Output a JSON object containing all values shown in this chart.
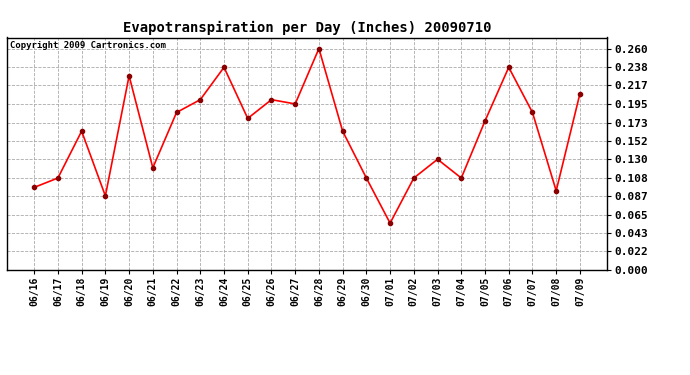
{
  "title": "Evapotranspiration per Day (Inches) 20090710",
  "copyright": "Copyright 2009 Cartronics.com",
  "labels": [
    "06/16",
    "06/17",
    "06/18",
    "06/19",
    "06/20",
    "06/21",
    "06/22",
    "06/23",
    "06/24",
    "06/25",
    "06/26",
    "06/27",
    "06/28",
    "06/29",
    "06/30",
    "07/01",
    "07/02",
    "07/03",
    "07/04",
    "07/05",
    "07/06",
    "07/07",
    "07/08",
    "07/09"
  ],
  "values": [
    0.097,
    0.108,
    0.163,
    0.087,
    0.228,
    0.12,
    0.185,
    0.2,
    0.238,
    0.178,
    0.2,
    0.195,
    0.26,
    0.163,
    0.108,
    0.055,
    0.108,
    0.13,
    0.108,
    0.175,
    0.238,
    0.185,
    0.093,
    0.207
  ],
  "line_color": "red",
  "marker": "o",
  "marker_color": "darkred",
  "background_color": "#ffffff",
  "plot_bg_color": "#ffffff",
  "grid_color": "#aaaaaa",
  "ylim": [
    0.0,
    0.273
  ],
  "yticks": [
    0.0,
    0.022,
    0.043,
    0.065,
    0.087,
    0.108,
    0.13,
    0.152,
    0.173,
    0.195,
    0.217,
    0.238,
    0.26
  ],
  "title_fontsize": 10,
  "copyright_fontsize": 6.5,
  "tick_fontsize": 7,
  "ytick_fontsize": 8
}
